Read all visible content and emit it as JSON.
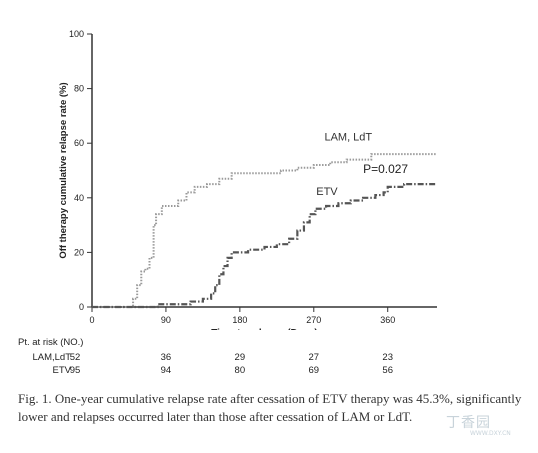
{
  "chart_data": {
    "type": "line",
    "xlabel": "Time to relapse (Days)",
    "ylabel": "Off therapy cumulative relapse rate (%)",
    "xlim": [
      0,
      420
    ],
    "ylim": [
      0,
      100
    ],
    "x_ticks": [
      0,
      90,
      180,
      270,
      360
    ],
    "y_ticks": [
      0,
      20,
      40,
      60,
      80,
      100
    ],
    "series": [
      {
        "name": "LAM, LdT",
        "color": "#9a9a9a",
        "style": "dotted",
        "points": [
          [
            0,
            0
          ],
          [
            45,
            0
          ],
          [
            50,
            3
          ],
          [
            55,
            8
          ],
          [
            60,
            13
          ],
          [
            65,
            14
          ],
          [
            70,
            18
          ],
          [
            75,
            30
          ],
          [
            78,
            34
          ],
          [
            85,
            37
          ],
          [
            95,
            37
          ],
          [
            105,
            39
          ],
          [
            115,
            42
          ],
          [
            125,
            44
          ],
          [
            140,
            45
          ],
          [
            155,
            47
          ],
          [
            170,
            49
          ],
          [
            200,
            49
          ],
          [
            230,
            50
          ],
          [
            250,
            51
          ],
          [
            270,
            52
          ],
          [
            290,
            53
          ],
          [
            310,
            54
          ],
          [
            330,
            54
          ],
          [
            340,
            56
          ],
          [
            360,
            56
          ],
          [
            420,
            56
          ]
        ]
      },
      {
        "name": "ETV",
        "color": "#555555",
        "style": "dashdot",
        "points": [
          [
            0,
            0
          ],
          [
            70,
            0
          ],
          [
            80,
            1
          ],
          [
            110,
            1
          ],
          [
            120,
            2
          ],
          [
            135,
            3
          ],
          [
            145,
            5
          ],
          [
            150,
            8
          ],
          [
            155,
            12
          ],
          [
            160,
            15
          ],
          [
            165,
            18
          ],
          [
            170,
            20
          ],
          [
            190,
            21
          ],
          [
            210,
            22
          ],
          [
            225,
            23
          ],
          [
            240,
            25
          ],
          [
            250,
            28
          ],
          [
            258,
            31
          ],
          [
            265,
            34
          ],
          [
            272,
            36
          ],
          [
            285,
            37
          ],
          [
            300,
            38
          ],
          [
            315,
            39
          ],
          [
            330,
            40
          ],
          [
            345,
            41
          ],
          [
            355,
            42
          ],
          [
            360,
            44
          ],
          [
            375,
            44
          ],
          [
            380,
            45
          ],
          [
            420,
            45
          ]
        ]
      }
    ],
    "annotation": "P=0.027"
  },
  "risk_table": {
    "title": "Pt. at risk (NO.)",
    "rows": [
      {
        "label": "LAM,LdT",
        "values": [
          "52",
          "36",
          "29",
          "27",
          "23"
        ]
      },
      {
        "label": "ETV",
        "values": [
          "95",
          "94",
          "80",
          "69",
          "56"
        ]
      }
    ]
  },
  "caption": "Fig. 1. One-year cumulative relapse rate after cessation of ETV therapy was 45.3%, significantly lower and relapses occurred later than those after cessation of LAM or LdT.",
  "watermark": "丁香园",
  "watermark_sub": "WWW.DXY.CN"
}
